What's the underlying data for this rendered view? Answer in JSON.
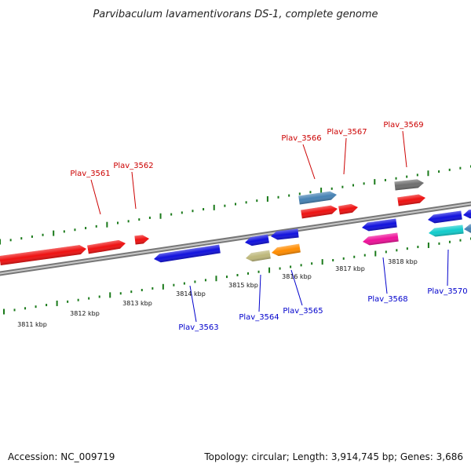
{
  "title": "Parvibaculum lavamentivorans DS-1, complete genome",
  "footer": {
    "accession": "Accession: NC_009719",
    "summary": "Topology: circular; Length: 3,914,745 bp; Genes: 3,686"
  },
  "colors": {
    "backbone": "#8a8a8a",
    "tick": "#1a7a1a",
    "label_top": "#cc0000",
    "label_bottom": "#0000cc",
    "leader_top": "#cc0000",
    "leader_bottom": "#0000cc"
  },
  "scale": {
    "unit": "kbp",
    "labels": [
      "3811 kbp",
      "3812 kbp",
      "3813 kbp",
      "3814 kbp",
      "3815 kbp",
      "3816 kbp",
      "3817 kbp",
      "3818 kbp"
    ]
  },
  "labels": [
    {
      "text": "Plav_3561",
      "strand": "top"
    },
    {
      "text": "Plav_3562",
      "strand": "top"
    },
    {
      "text": "Plav_3566",
      "strand": "top"
    },
    {
      "text": "Plav_3567",
      "strand": "top"
    },
    {
      "text": "Plav_3569",
      "strand": "top"
    },
    {
      "text": "Plav_3563",
      "strand": "bottom"
    },
    {
      "text": "Plav_3564",
      "strand": "bottom"
    },
    {
      "text": "Plav_3565",
      "strand": "bottom"
    },
    {
      "text": "Plav_3568",
      "strand": "bottom"
    },
    {
      "text": "Plav_3570",
      "strand": "bottom"
    }
  ],
  "genes": [
    {
      "color": "#ee1111",
      "strand": "forward"
    },
    {
      "color": "#ee1111",
      "strand": "forward"
    },
    {
      "color": "#ee1111",
      "strand": "forward"
    },
    {
      "color": "#1111dd",
      "strand": "reverse"
    },
    {
      "color": "#1111dd",
      "strand": "reverse"
    },
    {
      "color": "#1111dd",
      "strand": "reverse"
    },
    {
      "color": "#bdb77a",
      "strand": "reverse"
    },
    {
      "color": "#ff8c00",
      "strand": "reverse"
    },
    {
      "color": "#4682b4",
      "strand": "forward"
    },
    {
      "color": "#ee1111",
      "strand": "forward"
    },
    {
      "color": "#ee1111",
      "strand": "forward"
    },
    {
      "color": "#1111dd",
      "strand": "reverse"
    },
    {
      "color": "#ee1199",
      "strand": "reverse"
    },
    {
      "color": "#6e6e6e",
      "strand": "forward"
    },
    {
      "color": "#ee1111",
      "strand": "forward"
    },
    {
      "color": "#1111dd",
      "strand": "reverse"
    },
    {
      "color": "#1111dd",
      "strand": "reverse"
    },
    {
      "color": "#11cccc",
      "strand": "reverse"
    },
    {
      "color": "#4682b4",
      "strand": "reverse"
    }
  ]
}
